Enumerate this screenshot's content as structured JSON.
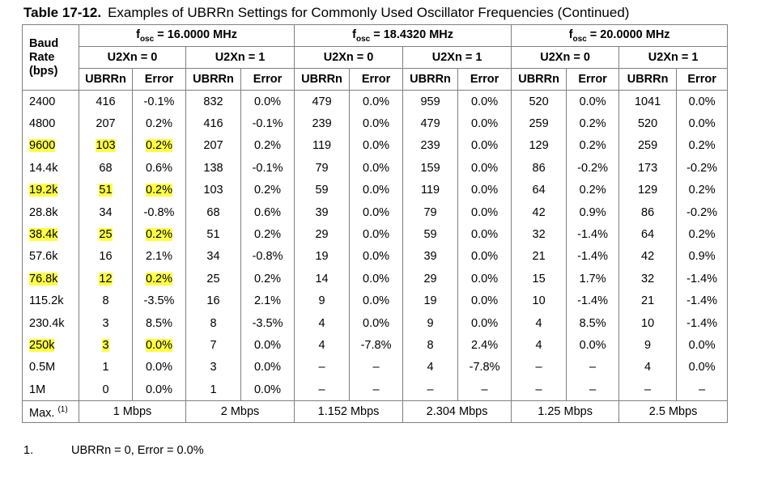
{
  "caption": {
    "number": "Table 17-12.",
    "title": "Examples of UBRRn Settings for Commonly Used Oscillator Frequencies (Continued)"
  },
  "header": {
    "baud_label": [
      "Baud",
      "Rate",
      "(bps)"
    ],
    "f_prefix": "f",
    "f_sub": "osc",
    "freqs": [
      "= 16.0000 MHz",
      "= 18.4320 MHz",
      "= 20.0000 MHz"
    ],
    "modes": [
      "U2Xn = 0",
      "U2Xn = 1"
    ],
    "col_ubrr": "UBRRn",
    "col_error": "Error"
  },
  "rows": [
    {
      "baud": "2400",
      "hl": false,
      "cells": [
        "416",
        "-0.1%",
        "832",
        "0.0%",
        "479",
        "0.0%",
        "959",
        "0.0%",
        "520",
        "0.0%",
        "1041",
        "0.0%"
      ]
    },
    {
      "baud": "4800",
      "hl": false,
      "cells": [
        "207",
        "0.2%",
        "416",
        "-0.1%",
        "239",
        "0.0%",
        "479",
        "0.0%",
        "259",
        "0.2%",
        "520",
        "0.0%"
      ]
    },
    {
      "baud": "9600",
      "hl": true,
      "cells": [
        "103",
        "0.2%",
        "207",
        "0.2%",
        "119",
        "0.0%",
        "239",
        "0.0%",
        "129",
        "0.2%",
        "259",
        "0.2%"
      ]
    },
    {
      "baud": "14.4k",
      "hl": false,
      "cells": [
        "68",
        "0.6%",
        "138",
        "-0.1%",
        "79",
        "0.0%",
        "159",
        "0.0%",
        "86",
        "-0.2%",
        "173",
        "-0.2%"
      ]
    },
    {
      "baud": "19.2k",
      "hl": true,
      "cells": [
        "51",
        "0.2%",
        "103",
        "0.2%",
        "59",
        "0.0%",
        "119",
        "0.0%",
        "64",
        "0.2%",
        "129",
        "0.2%"
      ]
    },
    {
      "baud": "28.8k",
      "hl": false,
      "cells": [
        "34",
        "-0.8%",
        "68",
        "0.6%",
        "39",
        "0.0%",
        "79",
        "0.0%",
        "42",
        "0.9%",
        "86",
        "-0.2%"
      ]
    },
    {
      "baud": "38.4k",
      "hl": true,
      "cells": [
        "25",
        "0.2%",
        "51",
        "0.2%",
        "29",
        "0.0%",
        "59",
        "0.0%",
        "32",
        "-1.4%",
        "64",
        "0.2%"
      ]
    },
    {
      "baud": "57.6k",
      "hl": false,
      "cells": [
        "16",
        "2.1%",
        "34",
        "-0.8%",
        "19",
        "0.0%",
        "39",
        "0.0%",
        "21",
        "-1.4%",
        "42",
        "0.9%"
      ]
    },
    {
      "baud": "76.8k",
      "hl": true,
      "cells": [
        "12",
        "0.2%",
        "25",
        "0.2%",
        "14",
        "0.0%",
        "29",
        "0.0%",
        "15",
        "1.7%",
        "32",
        "-1.4%"
      ]
    },
    {
      "baud": "115.2k",
      "hl": false,
      "cells": [
        "8",
        "-3.5%",
        "16",
        "2.1%",
        "9",
        "0.0%",
        "19",
        "0.0%",
        "10",
        "-1.4%",
        "21",
        "-1.4%"
      ]
    },
    {
      "baud": "230.4k",
      "hl": false,
      "cells": [
        "3",
        "8.5%",
        "8",
        "-3.5%",
        "4",
        "0.0%",
        "9",
        "0.0%",
        "4",
        "8.5%",
        "10",
        "-1.4%"
      ]
    },
    {
      "baud": "250k",
      "hl": true,
      "cells": [
        "3",
        "0.0%",
        "7",
        "0.0%",
        "4",
        "-7.8%",
        "8",
        "2.4%",
        "4",
        "0.0%",
        "9",
        "0.0%"
      ]
    },
    {
      "baud": "0.5M",
      "hl": false,
      "cells": [
        "1",
        "0.0%",
        "3",
        "0.0%",
        "–",
        "–",
        "4",
        "-7.8%",
        "–",
        "–",
        "4",
        "0.0%"
      ]
    },
    {
      "baud": "1M",
      "hl": false,
      "cells": [
        "0",
        "0.0%",
        "1",
        "0.0%",
        "–",
        "–",
        "–",
        "–",
        "–",
        "–",
        "–",
        "–"
      ]
    }
  ],
  "max_row": {
    "label": "Max.",
    "note_ref": "(1)",
    "values": [
      "1 Mbps",
      "2 Mbps",
      "1.152 Mbps",
      "2.304 Mbps",
      "1.25 Mbps",
      "2.5 Mbps"
    ]
  },
  "footnote": {
    "number": "1.",
    "text": "UBRRn = 0, Error = 0.0%"
  },
  "colors": {
    "highlight": "#ffff44",
    "border": "#7f7f7f"
  }
}
